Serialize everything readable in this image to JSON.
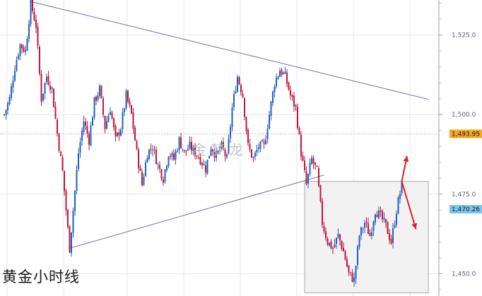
{
  "caption": "黄金小时线",
  "watermark": "金梦龙",
  "chart_data": {
    "type": "candlestick",
    "title": "",
    "xlabel": "",
    "ylabel": "",
    "ylim": [
      1443,
      1536
    ],
    "y_ticks": [
      {
        "value": 1525,
        "label": "1,525.0"
      },
      {
        "value": 1500,
        "label": "1,500.0"
      },
      {
        "value": 1475,
        "label": "1,475.0"
      },
      {
        "value": 1450,
        "label": "1,450.0"
      }
    ],
    "grid": true,
    "price_markers": [
      {
        "value": 1493.95,
        "label": "1,493.95",
        "color": "#f5a623"
      },
      {
        "value": 1470.26,
        "label": "1,470.26",
        "color": "#7cc4f0"
      }
    ],
    "reference_line": 1493.95,
    "colors": {
      "up": "#1f5fbf",
      "down": "#c0143c",
      "trendline": "#6d6fa8",
      "arrow": "#e0211e"
    },
    "anchors": [
      [
        0,
        1500
      ],
      [
        3,
        1505
      ],
      [
        6,
        1515
      ],
      [
        9,
        1522
      ],
      [
        12,
        1520
      ],
      [
        15,
        1535
      ],
      [
        18,
        1528
      ],
      [
        21,
        1505
      ],
      [
        24,
        1512
      ],
      [
        27,
        1508
      ],
      [
        30,
        1494
      ],
      [
        33,
        1482
      ],
      [
        35,
        1470
      ],
      [
        37,
        1458
      ],
      [
        39,
        1470
      ],
      [
        42,
        1488
      ],
      [
        45,
        1498
      ],
      [
        48,
        1492
      ],
      [
        51,
        1504
      ],
      [
        54,
        1508
      ],
      [
        57,
        1496
      ],
      [
        60,
        1502
      ],
      [
        63,
        1492
      ],
      [
        66,
        1496
      ],
      [
        69,
        1506
      ],
      [
        72,
        1500
      ],
      [
        75,
        1488
      ],
      [
        78,
        1478
      ],
      [
        81,
        1488
      ],
      [
        84,
        1490
      ],
      [
        87,
        1484
      ],
      [
        90,
        1480
      ],
      [
        93,
        1488
      ],
      [
        96,
        1486
      ],
      [
        99,
        1492
      ],
      [
        102,
        1488
      ],
      [
        105,
        1490
      ],
      [
        108,
        1488
      ],
      [
        111,
        1486
      ],
      [
        114,
        1483
      ],
      [
        117,
        1490
      ],
      [
        120,
        1487
      ],
      [
        123,
        1490
      ],
      [
        126,
        1486
      ],
      [
        129,
        1502
      ],
      [
        132,
        1512
      ],
      [
        135,
        1506
      ],
      [
        138,
        1490
      ],
      [
        141,
        1486
      ],
      [
        144,
        1490
      ],
      [
        147,
        1490
      ],
      [
        150,
        1500
      ],
      [
        153,
        1510
      ],
      [
        156,
        1514
      ],
      [
        159,
        1512
      ],
      [
        162,
        1506
      ],
      [
        165,
        1502
      ],
      [
        168,
        1488
      ],
      [
        171,
        1478
      ],
      [
        174,
        1486
      ],
      [
        177,
        1482
      ],
      [
        180,
        1466
      ],
      [
        183,
        1460
      ],
      [
        186,
        1458
      ],
      [
        189,
        1462
      ],
      [
        192,
        1457
      ],
      [
        195,
        1450
      ],
      [
        198,
        1448
      ],
      [
        201,
        1462
      ],
      [
        204,
        1466
      ],
      [
        207,
        1462
      ],
      [
        210,
        1470
      ],
      [
        213,
        1468
      ],
      [
        216,
        1465
      ],
      [
        219,
        1460
      ],
      [
        222,
        1470
      ],
      [
        225,
        1478
      ]
    ],
    "trendlines": [
      {
        "from": [
          15,
          1535.5
        ],
        "to": [
          240,
          1504.8
        ]
      },
      {
        "from": [
          37,
          1458
        ],
        "to": [
          181,
          1481
        ]
      }
    ],
    "box": {
      "x_from": 170,
      "x_to": 240,
      "y_from": 1444,
      "y_to": 1479
    },
    "arrows": [
      {
        "from": [
          225,
          1479
        ],
        "to": [
          228,
          1487
        ]
      },
      {
        "from": [
          225,
          1479
        ],
        "to": [
          233,
          1464
        ]
      }
    ],
    "x_count": 248
  }
}
